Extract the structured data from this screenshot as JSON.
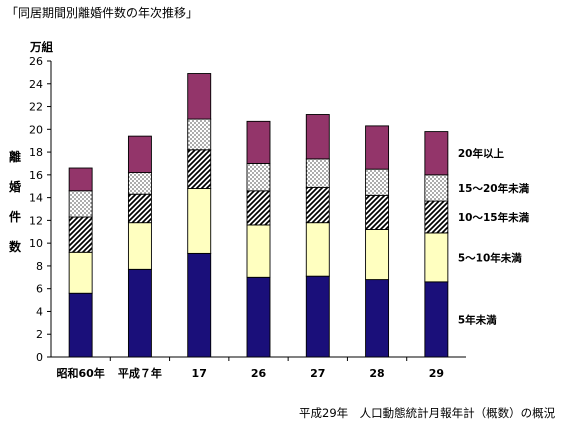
{
  "title": "「同居期間別離婚件数の年次推移」",
  "source_note": "平成29年　人口動態統計月報年計（概数）の概況",
  "chart_data": {
    "type": "bar",
    "stacked": true,
    "unit_label": "万組",
    "ylabel": "離婚件数",
    "ylim": [
      0,
      26
    ],
    "yticks": [
      0,
      2,
      4,
      6,
      8,
      10,
      12,
      14,
      16,
      18,
      20,
      22,
      24,
      26
    ],
    "categories": [
      "昭和60年",
      "平成７年",
      "17",
      "26",
      "27",
      "28",
      "29"
    ],
    "series": [
      {
        "name": "5年未満",
        "color": "#1a0f7a",
        "pattern": "solid",
        "values": [
          5.6,
          7.7,
          9.1,
          7.0,
          7.1,
          6.8,
          6.6
        ]
      },
      {
        "name": "5～10年未満",
        "color": "#ffffc0",
        "pattern": "solid",
        "values": [
          3.6,
          4.1,
          5.7,
          4.6,
          4.7,
          4.4,
          4.3
        ]
      },
      {
        "name": "10～15年未満",
        "color": "#000000",
        "pattern": "diagonal",
        "values": [
          3.1,
          2.5,
          3.4,
          3.0,
          3.1,
          3.0,
          2.8
        ]
      },
      {
        "name": "15～20年未満",
        "color": "#000000",
        "pattern": "dots",
        "values": [
          2.3,
          1.9,
          2.7,
          2.4,
          2.5,
          2.3,
          2.3
        ]
      },
      {
        "name": "20年以上",
        "color": "#93356a",
        "pattern": "solid",
        "values": [
          2.0,
          3.2,
          4.0,
          3.7,
          3.9,
          3.8,
          3.8
        ]
      }
    ],
    "grid": false,
    "legend": "right, labels beside top bar"
  }
}
